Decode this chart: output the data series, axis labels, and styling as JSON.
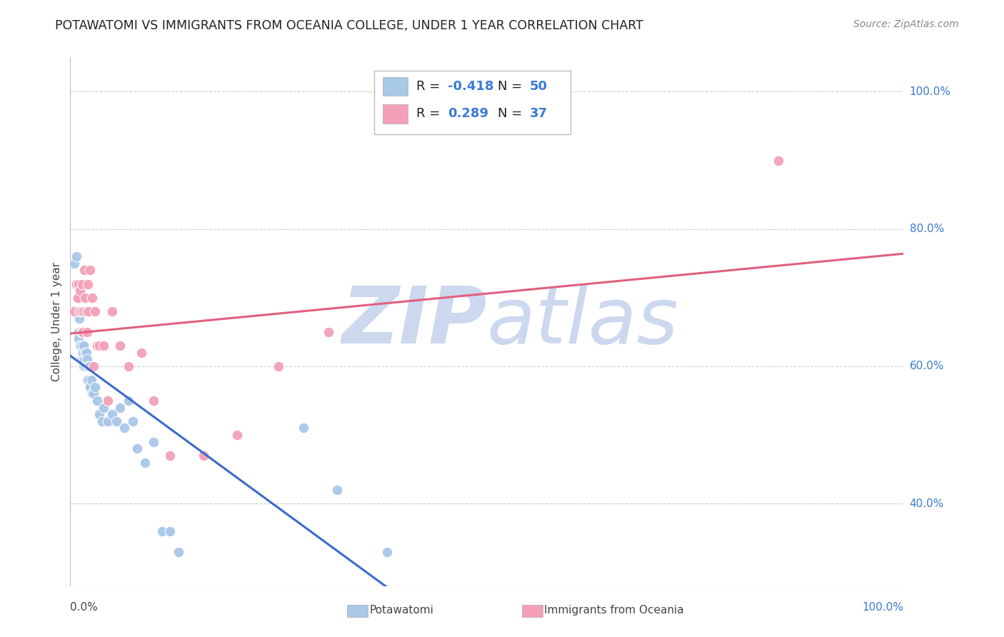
{
  "title": "POTAWATOMI VS IMMIGRANTS FROM OCEANIA COLLEGE, UNDER 1 YEAR CORRELATION CHART",
  "source": "Source: ZipAtlas.com",
  "ylabel": "College, Under 1 year",
  "xlim": [
    0.0,
    1.0
  ],
  "ylim": [
    0.28,
    1.05
  ],
  "ytick_labels": [
    "100.0%",
    "80.0%",
    "60.0%",
    "40.0%"
  ],
  "ytick_positions": [
    1.0,
    0.8,
    0.6,
    0.4
  ],
  "blue_line_color": "#3a6bc8",
  "pink_line_color": "#e06080",
  "blue_scatter_color": "#a8c8e8",
  "pink_scatter_color": "#f4a0b8",
  "legend1_color": "#a8c8e8",
  "legend2_color": "#f4a0b8",
  "watermark_zip": "ZIP",
  "watermark_atlas": "atlas",
  "watermark_color": "#ccd8ee",
  "background_color": "#ffffff",
  "grid_color": "#cccccc",
  "potawatomi_x": [
    0.005,
    0.007,
    0.008,
    0.009,
    0.01,
    0.01,
    0.011,
    0.012,
    0.012,
    0.013,
    0.013,
    0.014,
    0.015,
    0.015,
    0.016,
    0.016,
    0.017,
    0.018,
    0.018,
    0.019,
    0.02,
    0.02,
    0.021,
    0.022,
    0.023,
    0.024,
    0.025,
    0.026,
    0.028,
    0.03,
    0.032,
    0.035,
    0.038,
    0.04,
    0.045,
    0.05,
    0.055,
    0.06,
    0.065,
    0.07,
    0.075,
    0.08,
    0.09,
    0.1,
    0.11,
    0.12,
    0.13,
    0.28,
    0.32,
    0.38
  ],
  "potawatomi_y": [
    0.75,
    0.76,
    0.72,
    0.68,
    0.65,
    0.64,
    0.67,
    0.63,
    0.68,
    0.65,
    0.63,
    0.61,
    0.62,
    0.65,
    0.6,
    0.63,
    0.61,
    0.62,
    0.6,
    0.62,
    0.58,
    0.61,
    0.6,
    0.58,
    0.6,
    0.57,
    0.58,
    0.56,
    0.56,
    0.57,
    0.55,
    0.53,
    0.52,
    0.54,
    0.52,
    0.53,
    0.52,
    0.54,
    0.51,
    0.55,
    0.52,
    0.48,
    0.46,
    0.49,
    0.36,
    0.36,
    0.33,
    0.51,
    0.42,
    0.33
  ],
  "oceania_x": [
    0.005,
    0.007,
    0.008,
    0.009,
    0.01,
    0.011,
    0.012,
    0.013,
    0.014,
    0.015,
    0.016,
    0.017,
    0.018,
    0.019,
    0.02,
    0.021,
    0.022,
    0.024,
    0.026,
    0.028,
    0.03,
    0.032,
    0.035,
    0.04,
    0.045,
    0.05,
    0.06,
    0.07,
    0.085,
    0.1,
    0.12,
    0.16,
    0.2,
    0.25,
    0.31,
    0.85
  ],
  "oceania_y": [
    0.68,
    0.72,
    0.7,
    0.7,
    0.72,
    0.68,
    0.71,
    0.68,
    0.72,
    0.65,
    0.68,
    0.74,
    0.7,
    0.68,
    0.65,
    0.72,
    0.68,
    0.74,
    0.7,
    0.6,
    0.68,
    0.63,
    0.63,
    0.63,
    0.55,
    0.68,
    0.63,
    0.6,
    0.62,
    0.55,
    0.47,
    0.47,
    0.5,
    0.6,
    0.65,
    0.9
  ]
}
